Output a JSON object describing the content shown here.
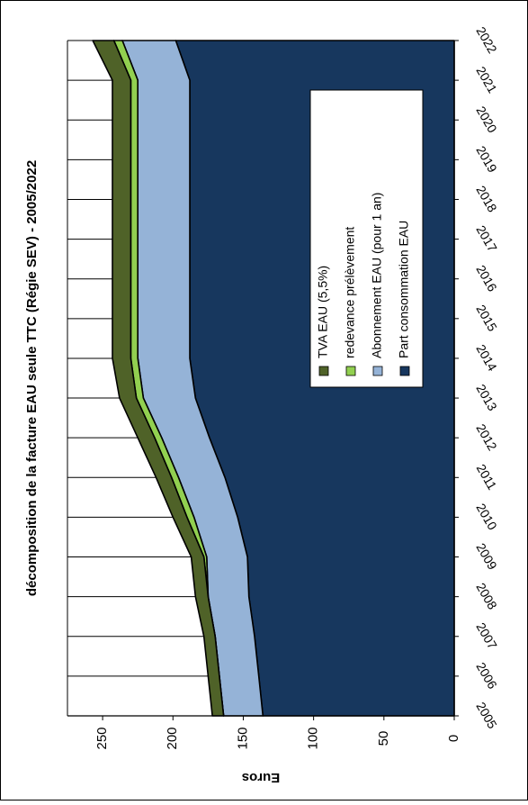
{
  "chart_data": {
    "type": "area",
    "stacked": true,
    "orientation": "rotated-90-clockwise",
    "title": "décomposition de la facture EAU seule TTC (Régie SEV) - 2005/2022",
    "ylabel": "Euros",
    "xlabel": "",
    "x": [
      2005,
      2006,
      2007,
      2008,
      2009,
      2010,
      2011,
      2012,
      2013,
      2014,
      2015,
      2016,
      2017,
      2018,
      2019,
      2020,
      2021,
      2022
    ],
    "x_tick_labels": [
      "2005",
      "2006",
      "2007",
      "2008",
      "2009",
      "2010",
      "2011",
      "2012",
      "2013",
      "2014",
      "2015",
      "2016",
      "2017",
      "2018",
      "2019",
      "2020",
      "2021",
      "2022"
    ],
    "ylim": [
      0,
      275
    ],
    "yticks": [
      0,
      50,
      100,
      150,
      200,
      250
    ],
    "y_tick_labels": [
      "0",
      "50",
      "100",
      "150",
      "200",
      "250"
    ],
    "grid": "vertical gridlines at each year (upper region)",
    "legend_position": "inside, upper-right",
    "series": [
      {
        "name": "Part consommation EAU",
        "color": "#17375e",
        "values": [
          136,
          139,
          142,
          146,
          147,
          154,
          163,
          174,
          184,
          188,
          188,
          188,
          188,
          188,
          188,
          188,
          188,
          198
        ]
      },
      {
        "name": "Abonnement EAU (pour 1 an)",
        "color": "#95b3d7",
        "values": [
          28,
          28,
          28,
          29,
          29,
          31,
          33,
          34,
          37,
          37,
          37,
          37,
          37,
          37,
          37,
          37,
          37,
          38
        ]
      },
      {
        "name": "redevance prélèvement",
        "color": "#92d050",
        "values": [
          0,
          0,
          0,
          0,
          2,
          5,
          5,
          5,
          5,
          5,
          5,
          5,
          5,
          5,
          5,
          5,
          5,
          6
        ]
      },
      {
        "name": "TVA EAU (5,5%)",
        "color": "#4f6228",
        "values": [
          8,
          8,
          8,
          9,
          9,
          10,
          11,
          12,
          12,
          13,
          13,
          13,
          13,
          13,
          13,
          13,
          13,
          15
        ]
      }
    ],
    "legend_order": [
      "TVA EAU (5,5%)",
      "redevance prélèvement",
      "Abonnement EAU (pour 1 an)",
      "Part consommation EAU"
    ]
  }
}
